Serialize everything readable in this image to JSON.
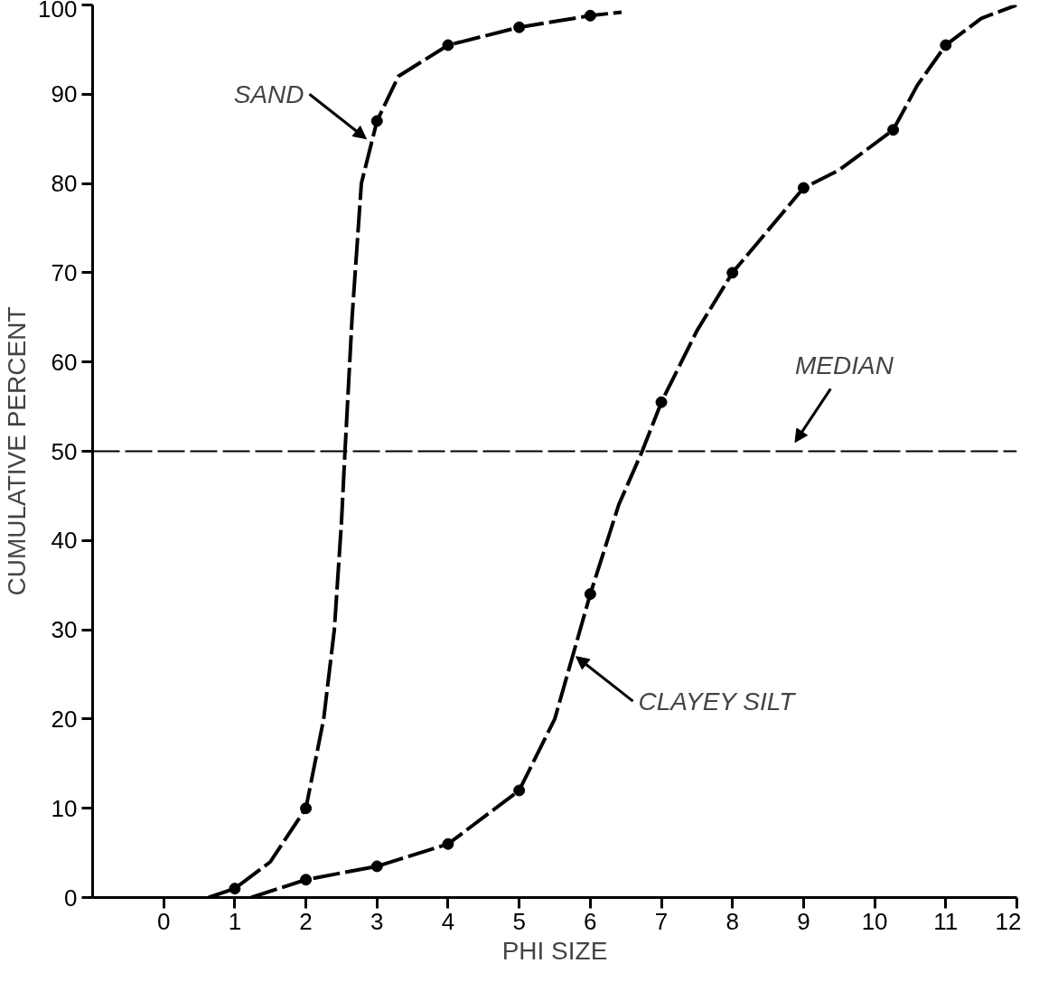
{
  "chart_data": {
    "type": "line",
    "xlabel": "PHI SIZE",
    "ylabel": "CUMULATIVE PERCENT",
    "xlim": [
      -1,
      12
    ],
    "ylim": [
      0,
      100
    ],
    "xticks": [
      0,
      1,
      2,
      3,
      4,
      5,
      6,
      7,
      8,
      9,
      10,
      11,
      12
    ],
    "yticks": [
      0,
      10,
      20,
      30,
      40,
      50,
      60,
      70,
      80,
      90,
      100
    ],
    "grid": false,
    "line_style": "dashed",
    "marker": "none",
    "series": [
      {
        "color": "#000000",
        "x": [
          0.63,
          1,
          1.5,
          2,
          2.25,
          2.4,
          2.5,
          2.55,
          2.65,
          2.78,
          3,
          3.3,
          4,
          5,
          6,
          6.44
        ],
        "values": [
          0,
          1,
          4,
          10,
          20,
          30,
          42,
          50,
          65,
          80,
          87,
          92,
          95.5,
          97.5,
          98.8,
          99.2
        ]
      },
      {
        "color": "#000000",
        "x": [
          1.23,
          2,
          3,
          4,
          5,
          5.5,
          6,
          6.4,
          6.73,
          7,
          7.5,
          8,
          9,
          9.5,
          10.26,
          10.6,
          11,
          11.5,
          12
        ],
        "values": [
          0,
          2,
          3.5,
          6,
          12,
          20,
          34,
          44,
          50,
          55.5,
          63.5,
          70,
          79.5,
          81.5,
          86,
          91,
          95.5,
          98.5,
          100
        ]
      },
      {
        "type": "scatter",
        "color": "#000000",
        "marker": "circle",
        "x": [
          1,
          2,
          3,
          4,
          5,
          6
        ],
        "values": [
          1,
          10,
          87,
          95.5,
          97.5,
          98.8
        ]
      },
      {
        "type": "scatter",
        "color": "#000000",
        "marker": "circle",
        "x": [
          2,
          3,
          4,
          5,
          6,
          7,
          8,
          9,
          10.26,
          11
        ],
        "values": [
          2,
          3.5,
          6,
          12,
          34,
          55.5,
          70,
          79.5,
          86,
          95.5
        ]
      }
    ],
    "ref_lines": [
      {
        "axis": "y",
        "value": 50,
        "label": "MEDIAN",
        "line_style": "dashed",
        "color": "#000000"
      }
    ],
    "annotations": [
      {
        "text": "SAND",
        "x": 2.85,
        "y": 85
      },
      {
        "text": "CLAYEY SILT",
        "x": 5.8,
        "y": 27
      }
    ]
  }
}
